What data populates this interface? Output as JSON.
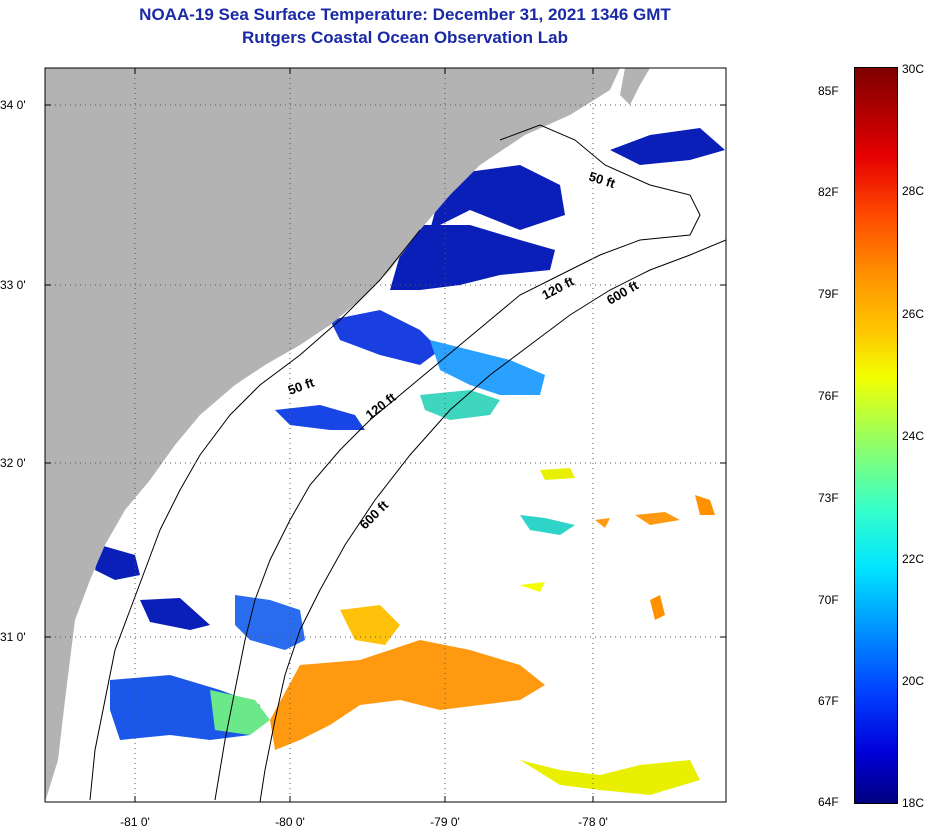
{
  "title": {
    "line1": "NOAA-19 Sea Surface Temperature:  December 31, 2021 1346 GMT",
    "line2": "Rutgers Coastal Ocean Observation Lab"
  },
  "map": {
    "lat_labels": [
      "34 0'",
      "33 0'",
      "32 0'",
      "31 0'"
    ],
    "lon_labels": [
      "-81 0'",
      "-80 0'",
      "-79 0'",
      "-78 0'"
    ],
    "contours": {
      "c50a": "50 ft",
      "c50b": "50 ft",
      "c120a": "120 ft",
      "c120b": "120 ft",
      "c600a": "600 ft",
      "c600b": "600 ft"
    },
    "colors": {
      "land": "#b3b3b3",
      "ocean": "#ffffff"
    }
  },
  "colorbar": {
    "fahrenheit": [
      "85F",
      "82F",
      "79F",
      "76F",
      "73F",
      "70F",
      "67F",
      "64F"
    ],
    "celsius": [
      "30C",
      "28C",
      "26C",
      "24C",
      "22C",
      "20C",
      "18C"
    ],
    "min_c": 18,
    "max_c": 30
  }
}
